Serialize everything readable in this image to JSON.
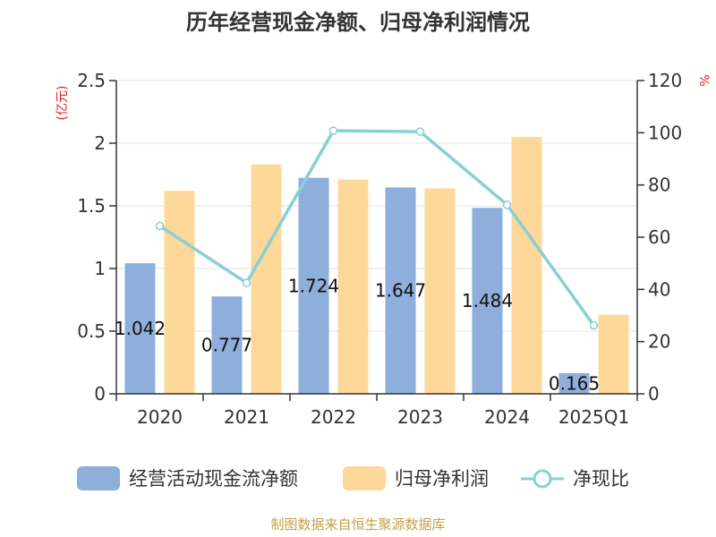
{
  "chart_data": {
    "type": "bar",
    "title": "历年经营现金净额、归母净利润情况",
    "categories": [
      "2020",
      "2021",
      "2022",
      "2023",
      "2024",
      "2025Q1"
    ],
    "series": [
      {
        "name": "经营活动现金流净额",
        "kind": "bar",
        "axis": "left",
        "color": "#8eaedc",
        "values": [
          1.042,
          0.777,
          1.724,
          1.647,
          1.484,
          0.165
        ]
      },
      {
        "name": "归母净利润",
        "kind": "bar",
        "axis": "left",
        "color": "#fdd898",
        "values": [
          1.62,
          1.83,
          1.71,
          1.64,
          2.05,
          0.63
        ]
      },
      {
        "name": "净现比",
        "kind": "line",
        "axis": "right",
        "color": "#86d0d6",
        "values": [
          64.3,
          42.5,
          100.8,
          100.4,
          72.4,
          26.2
        ]
      }
    ],
    "data_labels": [
      "1.042",
      "0.777",
      "1.724",
      "1.647",
      "1.484",
      "0.165"
    ],
    "y_left": {
      "unit": "(亿元)",
      "ylim": [
        0,
        2.5
      ],
      "ticks": [
        "0",
        "0.5",
        "1",
        "1.5",
        "2",
        "2.5"
      ]
    },
    "y_right": {
      "unit": "%",
      "ylim": [
        0,
        120
      ],
      "ticks": [
        "0",
        "20",
        "40",
        "60",
        "80",
        "100",
        "120"
      ]
    },
    "grid": true,
    "legend_position": "bottom"
  },
  "source_note": "制图数据来自恒生聚源数据库"
}
